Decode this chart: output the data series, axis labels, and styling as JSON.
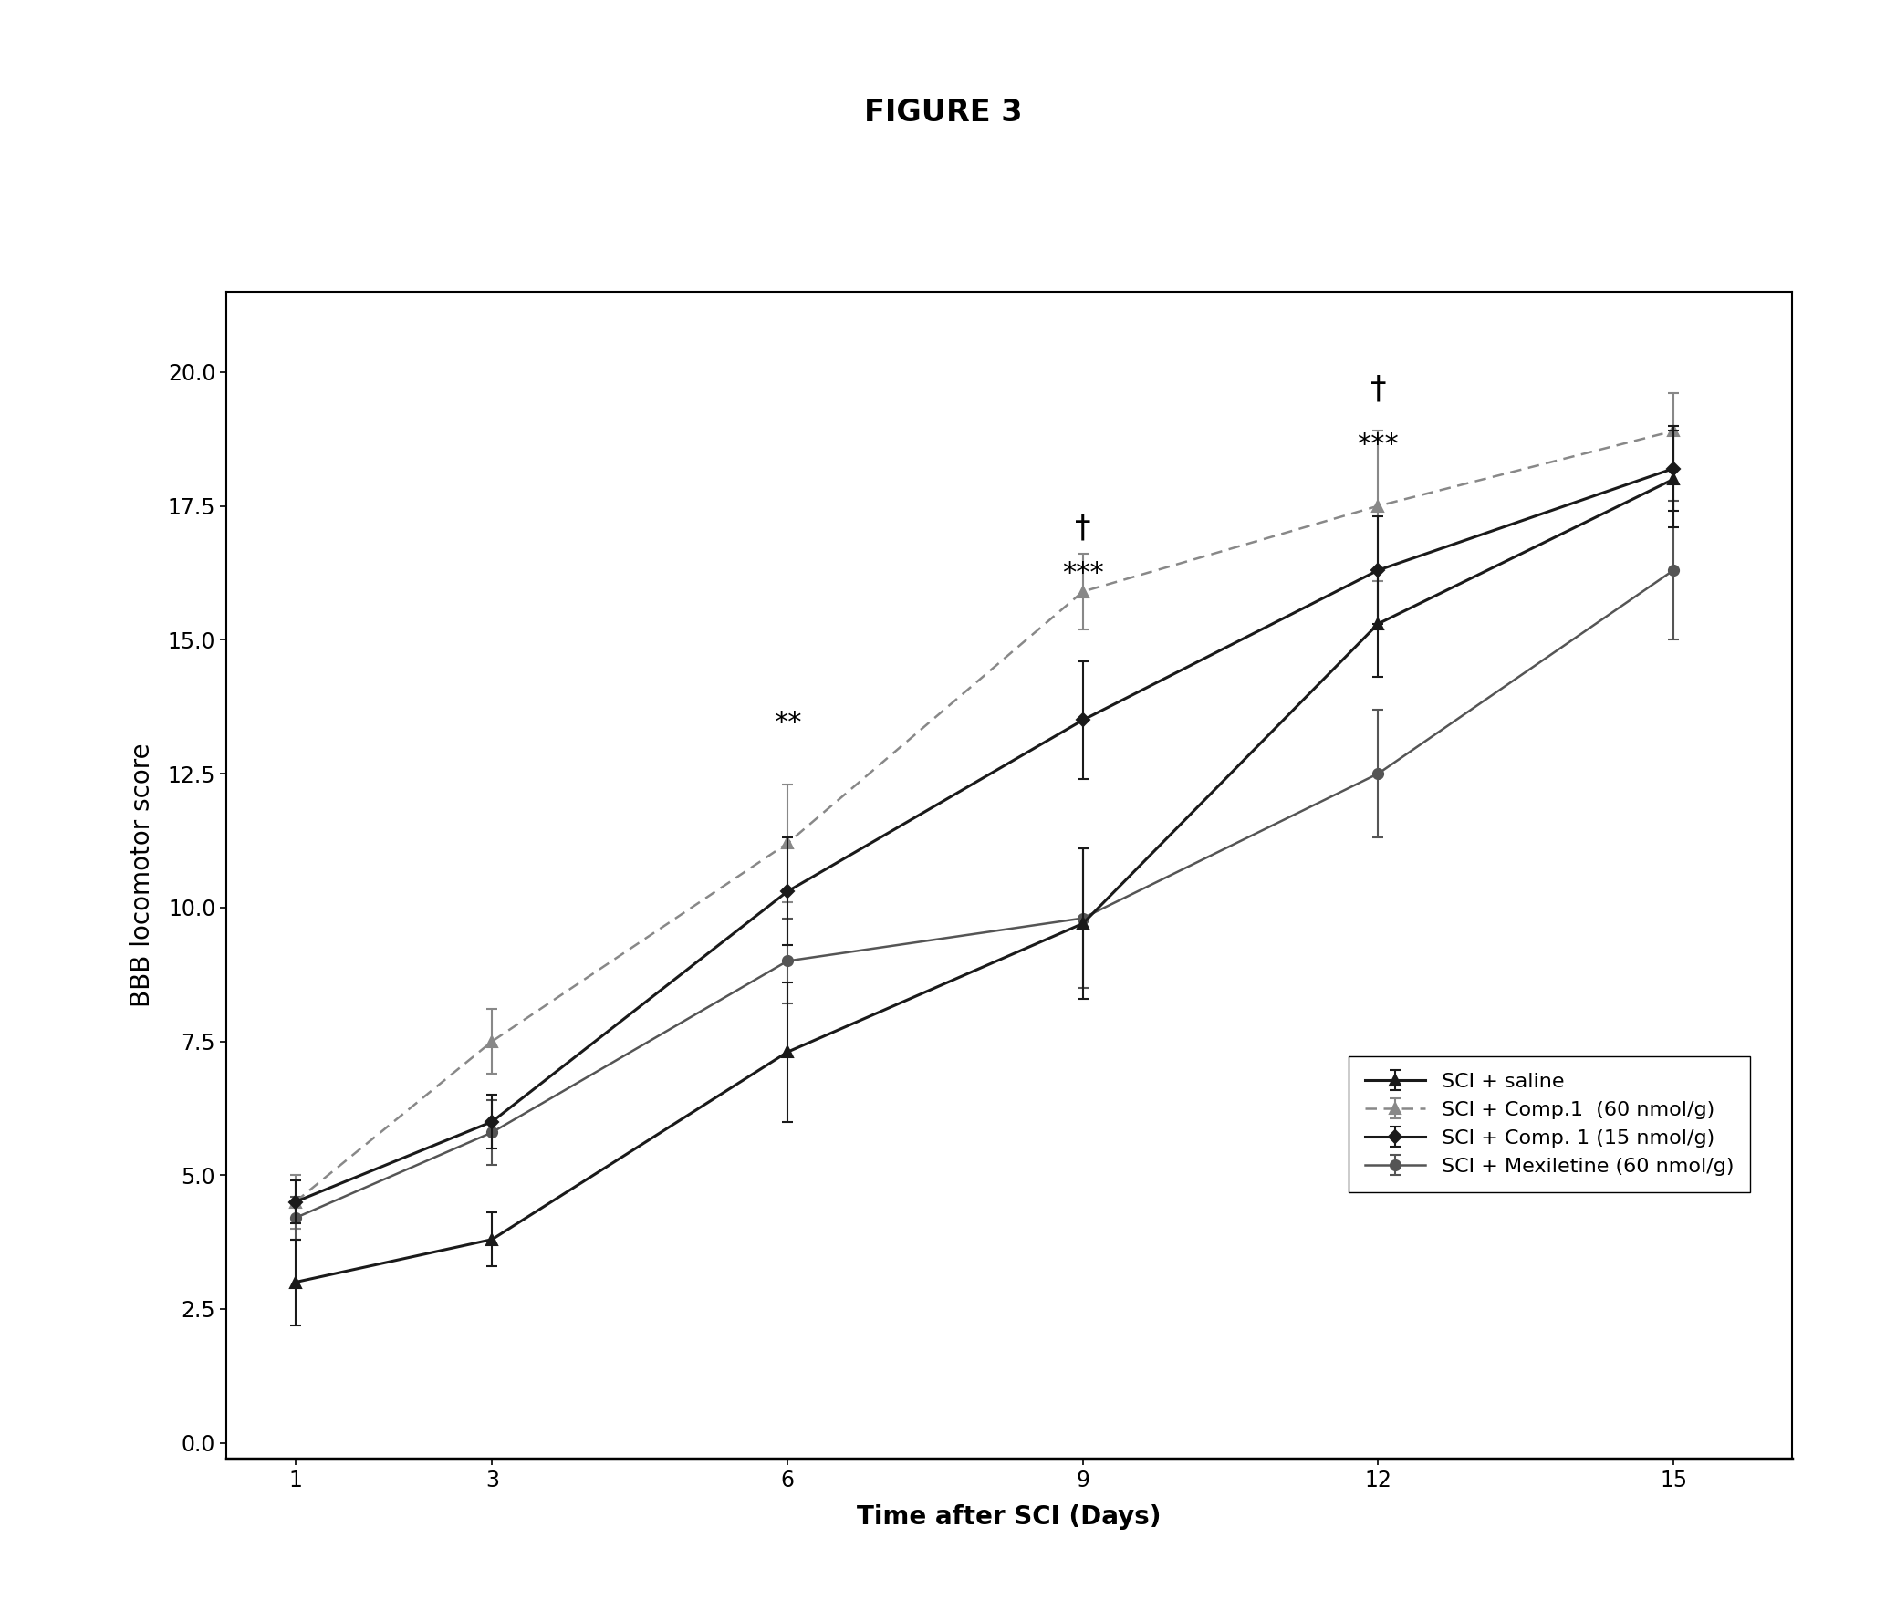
{
  "title": "FIGURE 3",
  "xlabel": "Time after SCI (Days)",
  "ylabel": "BBB locomotor score",
  "x": [
    1,
    3,
    6,
    9,
    12,
    15
  ],
  "series": [
    {
      "label": "SCI + saline",
      "y": [
        3.0,
        3.8,
        7.3,
        9.7,
        15.3,
        18.0
      ],
      "yerr": [
        0.8,
        0.5,
        1.3,
        1.4,
        1.0,
        0.9
      ],
      "color": "#1a1a1a",
      "linestyle": "-",
      "marker": "^",
      "markersize": 9,
      "linewidth": 2.2,
      "zorder": 4
    },
    {
      "label": "SCI + Comp.1  (60 nmol/g)",
      "y": [
        4.5,
        7.5,
        11.2,
        15.9,
        17.5,
        18.9
      ],
      "yerr": [
        0.5,
        0.6,
        1.1,
        0.7,
        1.4,
        0.7
      ],
      "color": "#888888",
      "linestyle": "--",
      "marker": "^",
      "markersize": 9,
      "linewidth": 1.8,
      "zorder": 3
    },
    {
      "label": "SCI + Comp. 1 (15 nmol/g)",
      "y": [
        4.5,
        6.0,
        10.3,
        13.5,
        16.3,
        18.2
      ],
      "yerr": [
        0.4,
        0.5,
        1.0,
        1.1,
        1.0,
        0.8
      ],
      "color": "#1a1a1a",
      "linestyle": "-",
      "marker": "D",
      "markersize": 7,
      "linewidth": 2.2,
      "zorder": 5
    },
    {
      "label": "SCI + Mexiletine (60 nmol/g)",
      "y": [
        4.2,
        5.8,
        9.0,
        9.8,
        12.5,
        16.3
      ],
      "yerr": [
        0.4,
        0.6,
        0.8,
        1.3,
        1.2,
        1.3
      ],
      "color": "#555555",
      "linestyle": "-",
      "marker": "o",
      "markersize": 8,
      "linewidth": 1.8,
      "zorder": 3
    }
  ],
  "ylim": [
    -0.3,
    21.5
  ],
  "yticks": [
    0.0,
    2.5,
    5.0,
    7.5,
    10.0,
    12.5,
    15.0,
    17.5,
    20.0
  ],
  "xlim": [
    0.3,
    16.2
  ],
  "xticks": [
    1,
    3,
    6,
    9,
    12,
    15
  ],
  "background_color": "#ffffff",
  "figure_size": [
    20.67,
    17.77
  ],
  "dpi": 100,
  "title_fontsize": 24,
  "label_fontsize": 20,
  "tick_fontsize": 17,
  "legend_fontsize": 16
}
